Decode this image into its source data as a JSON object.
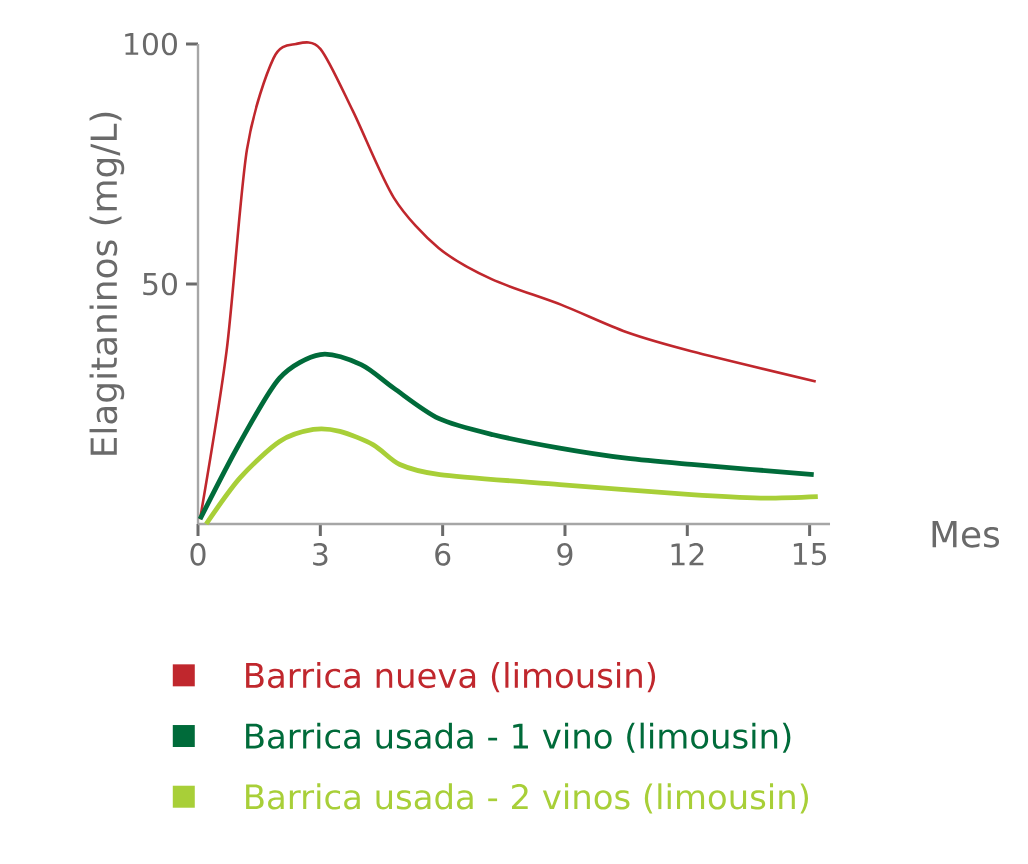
{
  "chart_data": {
    "type": "line",
    "xlabel": "Mes",
    "ylabel": "Elagitaninos (mg/L)",
    "xlim": [
      0,
      15.5
    ],
    "ylim": [
      0,
      100
    ],
    "xticks": [
      0,
      3,
      6,
      9,
      12,
      15
    ],
    "yticks": [
      50,
      100
    ],
    "grid": false,
    "legend": "bottom",
    "marker": "none",
    "line_style": "solid",
    "series": [
      {
        "name": "Barrica nueva (limousin)",
        "color": "#c0272d",
        "x": [
          0.05,
          0.7,
          1.2,
          1.85,
          2.4,
          3.0,
          3.8,
          4.8,
          5.9,
          7.2,
          8.9,
          10.5,
          12.1,
          15.15
        ],
        "values": [
          1,
          36,
          78,
          97,
          100,
          99,
          86,
          68,
          57.5,
          51,
          45.7,
          40,
          36,
          29.7
        ]
      },
      {
        "name": "Barrica usada - 1 vino (limousin)",
        "color": "#006b3a",
        "x": [
          0.05,
          1.0,
          2.0,
          3.0,
          4.0,
          4.8,
          5.9,
          7.24,
          8.87,
          10.5,
          12.1,
          15.1
        ],
        "values": [
          1,
          16.5,
          30.4,
          35.3,
          33.2,
          28.3,
          22,
          18.6,
          15.8,
          13.7,
          12.4,
          10.3
        ]
      },
      {
        "name": "Barrica usada - 2 vinos (limousin)",
        "color": "#a8cf38",
        "x": [
          0.2,
          1.03,
          2.0,
          2.83,
          3.48,
          4.3,
          4.95,
          5.93,
          8.87,
          12.1,
          13.8,
          15.2
        ],
        "values": [
          0,
          9.6,
          17.2,
          19.7,
          19.3,
          16.5,
          12.4,
          10.3,
          8.2,
          6.1,
          5.4,
          5.7
        ]
      }
    ]
  }
}
